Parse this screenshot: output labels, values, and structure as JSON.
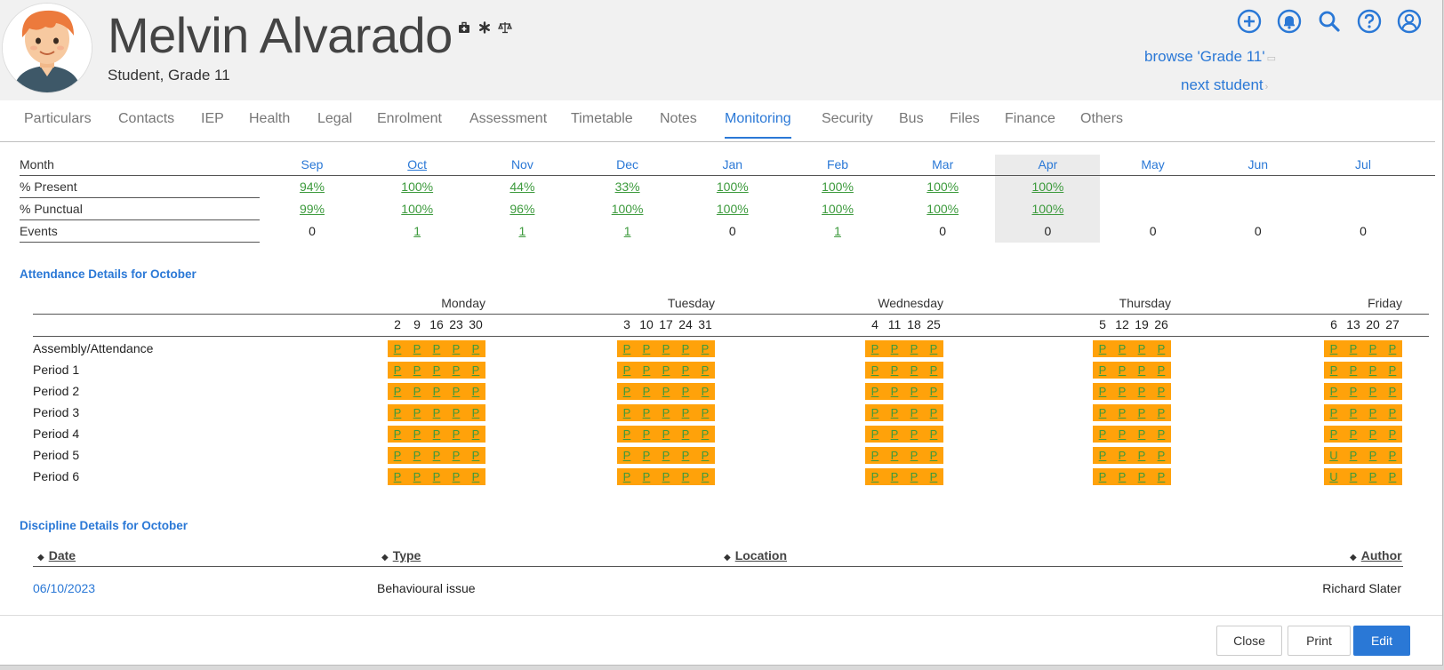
{
  "header": {
    "name": "Melvin Alvarado",
    "subtitle": "Student, Grade 11",
    "browse_link": "browse 'Grade 11'",
    "next_link": "next student"
  },
  "icons": {
    "name_icons": [
      "medical-kit-icon",
      "asterisk-icon",
      "scales-icon"
    ],
    "top_icons": [
      "add-circle-icon",
      "bell-icon",
      "search-icon",
      "help-icon",
      "user-circle-icon"
    ]
  },
  "tabs": [
    {
      "label": "Particulars"
    },
    {
      "label": "Contacts"
    },
    {
      "label": "IEP"
    },
    {
      "label": "Health"
    },
    {
      "label": "Legal"
    },
    {
      "label": "Enrolment"
    },
    {
      "label": "Assessment"
    },
    {
      "label": "Timetable"
    },
    {
      "label": "Notes"
    },
    {
      "label": "Monitoring",
      "active": true
    },
    {
      "label": "Security"
    },
    {
      "label": "Bus"
    },
    {
      "label": "Files"
    },
    {
      "label": "Finance"
    },
    {
      "label": "Others"
    }
  ],
  "monitoring": {
    "row_labels": {
      "month": "Month",
      "present": "% Present",
      "punctual": "% Punctual",
      "events": "Events"
    },
    "months": [
      "Sep",
      "Oct",
      "Nov",
      "Dec",
      "Jan",
      "Feb",
      "Mar",
      "Apr",
      "May",
      "Jun",
      "Jul"
    ],
    "selected_month": "Oct",
    "highlighted_month": "Apr",
    "present": [
      "94%",
      "100%",
      "44%",
      "33%",
      "100%",
      "100%",
      "100%",
      "100%",
      "",
      "",
      ""
    ],
    "punctual": [
      "99%",
      "100%",
      "96%",
      "100%",
      "100%",
      "100%",
      "100%",
      "100%",
      "",
      "",
      ""
    ],
    "events": [
      "0",
      "1",
      "1",
      "1",
      "0",
      "1",
      "0",
      "0",
      "0",
      "0",
      "0"
    ]
  },
  "attendance": {
    "title": "Attendance Details for October",
    "days": [
      {
        "name": "Monday",
        "dates": [
          "2",
          "9",
          "16",
          "23",
          "30"
        ]
      },
      {
        "name": "Tuesday",
        "dates": [
          "3",
          "10",
          "17",
          "24",
          "31"
        ]
      },
      {
        "name": "Wednesday",
        "dates": [
          "4",
          "11",
          "18",
          "25"
        ]
      },
      {
        "name": "Thursday",
        "dates": [
          "5",
          "12",
          "19",
          "26"
        ]
      },
      {
        "name": "Friday",
        "dates": [
          "6",
          "13",
          "20",
          "27"
        ]
      }
    ],
    "periods": [
      {
        "label": "Assembly/Attendance",
        "marks": [
          [
            "P",
            "P",
            "P",
            "P",
            "P"
          ],
          [
            "P",
            "P",
            "P",
            "P",
            "P"
          ],
          [
            "P",
            "P",
            "P",
            "P"
          ],
          [
            "P",
            "P",
            "P",
            "P"
          ],
          [
            "P",
            "P",
            "P",
            "P"
          ]
        ]
      },
      {
        "label": "Period 1",
        "marks": [
          [
            "P",
            "P",
            "P",
            "P",
            "P"
          ],
          [
            "P",
            "P",
            "P",
            "P",
            "P"
          ],
          [
            "P",
            "P",
            "P",
            "P"
          ],
          [
            "P",
            "P",
            "P",
            "P"
          ],
          [
            "P",
            "P",
            "P",
            "P"
          ]
        ]
      },
      {
        "label": "Period 2",
        "marks": [
          [
            "P",
            "P",
            "P",
            "P",
            "P"
          ],
          [
            "P",
            "P",
            "P",
            "P",
            "P"
          ],
          [
            "P",
            "P",
            "P",
            "P"
          ],
          [
            "P",
            "P",
            "P",
            "P"
          ],
          [
            "P",
            "P",
            "P",
            "P"
          ]
        ]
      },
      {
        "label": "Period 3",
        "marks": [
          [
            "P",
            "P",
            "P",
            "P",
            "P"
          ],
          [
            "P",
            "P",
            "P",
            "P",
            "P"
          ],
          [
            "P",
            "P",
            "P",
            "P"
          ],
          [
            "P",
            "P",
            "P",
            "P"
          ],
          [
            "P",
            "P",
            "P",
            "P"
          ]
        ]
      },
      {
        "label": "Period 4",
        "marks": [
          [
            "P",
            "P",
            "P",
            "P",
            "P"
          ],
          [
            "P",
            "P",
            "P",
            "P",
            "P"
          ],
          [
            "P",
            "P",
            "P",
            "P"
          ],
          [
            "P",
            "P",
            "P",
            "P"
          ],
          [
            "P",
            "P",
            "P",
            "P"
          ]
        ]
      },
      {
        "label": "Period 5",
        "marks": [
          [
            "P",
            "P",
            "P",
            "P",
            "P"
          ],
          [
            "P",
            "P",
            "P",
            "P",
            "P"
          ],
          [
            "P",
            "P",
            "P",
            "P"
          ],
          [
            "P",
            "P",
            "P",
            "P"
          ],
          [
            "U",
            "P",
            "P",
            "P"
          ]
        ]
      },
      {
        "label": "Period 6",
        "marks": [
          [
            "P",
            "P",
            "P",
            "P",
            "P"
          ],
          [
            "P",
            "P",
            "P",
            "P",
            "P"
          ],
          [
            "P",
            "P",
            "P",
            "P"
          ],
          [
            "P",
            "P",
            "P",
            "P"
          ],
          [
            "U",
            "P",
            "P",
            "P"
          ]
        ]
      }
    ]
  },
  "discipline": {
    "title": "Discipline Details for October",
    "columns": [
      "Date",
      "Type",
      "Location",
      "Author"
    ],
    "rows": [
      {
        "date": "06/10/2023",
        "type": "Behavioural issue",
        "location": "",
        "author": "Richard Slater"
      }
    ]
  },
  "footer": {
    "close": "Close",
    "print": "Print",
    "edit": "Edit"
  },
  "colors": {
    "accent": "#2a78d6",
    "present_mark": "#3c9a3c",
    "attendance_block": "#ffa20a"
  }
}
